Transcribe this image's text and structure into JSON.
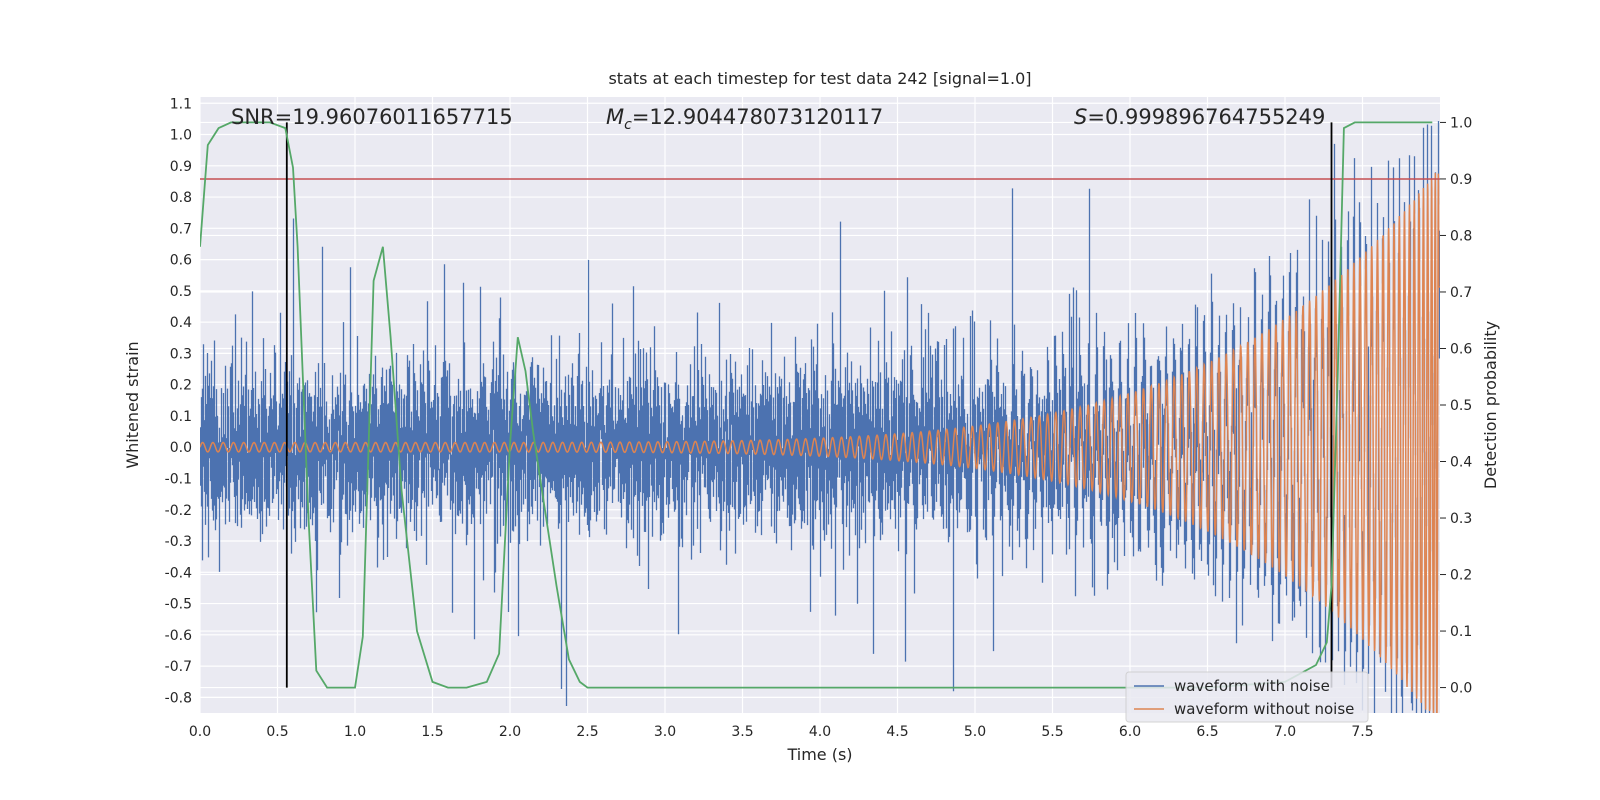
{
  "chart_data": {
    "type": "line",
    "title": "stats at each timestep for test data 242 [signal=1.0]",
    "xlabel": "Time (s)",
    "ylabel": "Whitened strain",
    "ylabel_right": "Detection probability",
    "xlim": [
      0.0,
      8.0
    ],
    "ylim": [
      -0.85,
      1.12
    ],
    "ylim_right": [
      -0.045,
      1.045
    ],
    "x_ticks": [
      "0.0",
      "0.5",
      "1.0",
      "1.5",
      "2.0",
      "2.5",
      "3.0",
      "3.5",
      "4.0",
      "4.5",
      "5.0",
      "5.5",
      "6.0",
      "6.5",
      "7.0",
      "7.5"
    ],
    "y_ticks": [
      "-0.8",
      "-0.7",
      "-0.6",
      "-0.5",
      "-0.4",
      "-0.3",
      "-0.2",
      "-0.1",
      "0.0",
      "0.1",
      "0.2",
      "0.3",
      "0.4",
      "0.5",
      "0.6",
      "0.7",
      "0.8",
      "0.9",
      "1.0",
      "1.1"
    ],
    "y_ticks_right": [
      "0.0",
      "0.1",
      "0.2",
      "0.3",
      "0.4",
      "0.5",
      "0.6",
      "0.7",
      "0.8",
      "0.9",
      "1.0"
    ],
    "annotations": {
      "snr": "SNR=19.96076011657715",
      "mc_symbol": "M",
      "mc_sub": "c",
      "mc_value": "=12.904478073120117",
      "s_symbol": "S",
      "s_value": "=0.999896764755249"
    },
    "threshold_probability": 0.9,
    "vertical_lines_s": [
      0.56,
      7.3
    ],
    "series": [
      {
        "name": "waveform with noise",
        "color": "#4c72b0",
        "noise_sigma": 0.13,
        "spike_max": 0.6
      },
      {
        "name": "waveform without noise",
        "color": "#dd8452",
        "start_amplitude": 0.015,
        "end_amplitude": 0.9,
        "cycles": 150
      },
      {
        "name": "detection probability",
        "color": "#55a868",
        "axis": "right",
        "x": [
          0.0,
          0.05,
          0.12,
          0.2,
          0.3,
          0.45,
          0.55,
          0.6,
          0.63,
          0.7,
          0.75,
          0.82,
          0.9,
          1.0,
          1.05,
          1.12,
          1.18,
          1.23,
          1.3,
          1.4,
          1.5,
          1.6,
          1.72,
          1.85,
          1.93,
          2.0,
          2.05,
          2.1,
          2.15,
          2.2,
          2.3,
          2.38,
          2.45,
          2.5,
          3.0,
          4.0,
          5.0,
          6.0,
          6.5,
          7.0,
          7.2,
          7.27,
          7.3,
          7.34,
          7.38,
          7.45,
          7.6,
          7.95
        ],
        "values": [
          0.78,
          0.96,
          0.99,
          1.0,
          1.0,
          1.0,
          0.99,
          0.92,
          0.78,
          0.3,
          0.03,
          0.0,
          0.0,
          0.0,
          0.09,
          0.72,
          0.78,
          0.62,
          0.35,
          0.1,
          0.01,
          0.0,
          0.0,
          0.01,
          0.06,
          0.43,
          0.62,
          0.56,
          0.45,
          0.36,
          0.18,
          0.05,
          0.01,
          0.0,
          0.0,
          0.0,
          0.0,
          0.0,
          0.0,
          0.01,
          0.04,
          0.08,
          0.18,
          0.55,
          0.99,
          1.0,
          1.0,
          1.0
        ]
      }
    ],
    "legend": {
      "position": "bottom-right",
      "entries": [
        "waveform with noise",
        "waveform without noise"
      ]
    }
  },
  "colors": {
    "background": "#eaeaf2",
    "grid": "#ffffff",
    "threshold": "#c44e52",
    "vline": "#000000"
  }
}
